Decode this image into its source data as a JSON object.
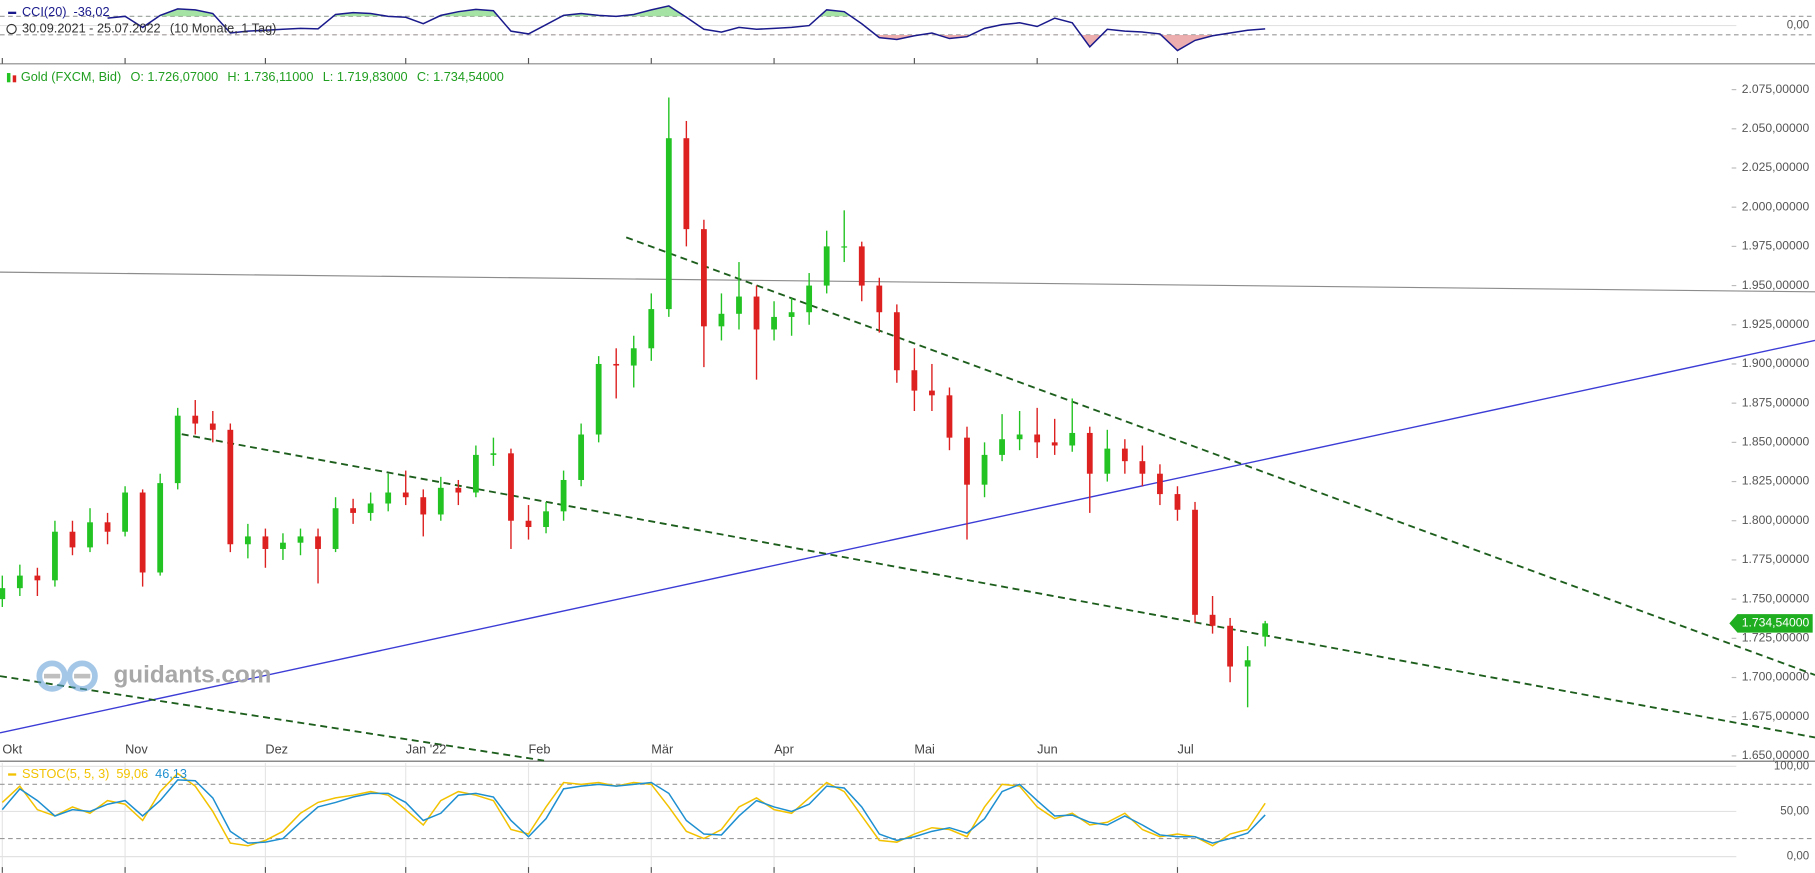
{
  "watermark": "guidants.com",
  "chart_data": [
    {
      "type": "line",
      "period": "30.09.2021 - 25.07.2022",
      "span": "(10 Monate, 1 Tag)",
      "ylim": [
        -375,
        250
      ],
      "yticks": [
        {
          "value": 0,
          "label": "0,00"
        }
      ],
      "levels": [
        100,
        -100
      ],
      "series": [
        {
          "name": "CCI(20)",
          "color": "#1a1a8c",
          "last_label": "-36,02",
          "values": [
            null,
            null,
            null,
            null,
            null,
            null,
            80,
            100,
            -20,
            110,
            180,
            170,
            130,
            -80,
            -60,
            -50,
            -40,
            -30,
            -35,
            120,
            140,
            130,
            100,
            90,
            20,
            110,
            150,
            175,
            160,
            -60,
            -90,
            10,
            110,
            130,
            110,
            100,
            120,
            170,
            212,
            90,
            -40,
            -70,
            -20,
            -40,
            -30,
            -20,
            0,
            170,
            150,
            20,
            -130,
            -150,
            -110,
            -80,
            -140,
            -120,
            -30,
            10,
            30,
            -10,
            80,
            30,
            -230,
            -40,
            -60,
            -70,
            -90,
            -270,
            -160,
            -110,
            -80,
            -50,
            -36.02
          ]
        }
      ]
    },
    {
      "type": "candlestick",
      "title": "Gold (FXCM, Bid)",
      "ohlc_labels": [
        "O: 1.726,07000",
        "H: 1.736,11000",
        "L: 1.719,83000",
        "C: 1.734,54000"
      ],
      "last_close_label": "1.734,54000",
      "up_color": "#22c322",
      "down_color": "#dd2020",
      "ylim": [
        1647,
        2090
      ],
      "yticks": [
        {
          "value": 1650,
          "label": "1.650,00000"
        },
        {
          "value": 1675,
          "label": "1.675,00000"
        },
        {
          "value": 1700,
          "label": "1.700,00000"
        },
        {
          "value": 1725,
          "label": "1.725,00000"
        },
        {
          "value": 1750,
          "label": "1.750,00000"
        },
        {
          "value": 1775,
          "label": "1.775,00000"
        },
        {
          "value": 1800,
          "label": "1.800,00000"
        },
        {
          "value": 1825,
          "label": "1.825,00000"
        },
        {
          "value": 1850,
          "label": "1.850,00000"
        },
        {
          "value": 1875,
          "label": "1.875,00000"
        },
        {
          "value": 1900,
          "label": "1.900,00000"
        },
        {
          "value": 1925,
          "label": "1.925,00000"
        },
        {
          "value": 1950,
          "label": "1.950,00000"
        },
        {
          "value": 1975,
          "label": "1.975,00000"
        },
        {
          "value": 2000,
          "label": "2.000,00000"
        },
        {
          "value": 2025,
          "label": "2.025,00000"
        },
        {
          "value": 2050,
          "label": "2.050,00000"
        },
        {
          "value": 2075,
          "label": "2.075,00000"
        }
      ],
      "categories": [
        "Okt",
        null,
        null,
        null,
        null,
        null,
        null,
        "Nov",
        null,
        null,
        null,
        null,
        null,
        null,
        null,
        "Dez",
        null,
        null,
        null,
        null,
        null,
        null,
        null,
        "Jan '22",
        null,
        null,
        null,
        null,
        null,
        null,
        "Feb",
        null,
        null,
        null,
        null,
        null,
        null,
        "Mär",
        null,
        null,
        null,
        null,
        null,
        null,
        "Apr",
        null,
        null,
        null,
        null,
        null,
        null,
        null,
        "Mai",
        null,
        null,
        null,
        null,
        null,
        null,
        "Jun",
        null,
        null,
        null,
        null,
        null,
        null,
        null,
        "Jul",
        null,
        null,
        null,
        null,
        null
      ],
      "open": [
        1750,
        1757,
        1765,
        1762,
        1793,
        1783,
        1799,
        1793,
        1818,
        1767,
        1824,
        1867,
        1862,
        1858,
        1785,
        1790,
        1782,
        1786,
        1790,
        1782,
        1808,
        1805,
        1811,
        1818,
        1815,
        1804,
        1821,
        1818,
        1842,
        1843,
        1800,
        1796,
        1806,
        1826,
        1855,
        1900,
        1899,
        1910,
        1935,
        2044,
        1986,
        1924,
        1932,
        1943,
        1922,
        1930,
        1933,
        1950,
        1975,
        1975,
        1950,
        1933,
        1896,
        1883,
        1880,
        1853,
        1823,
        1842,
        1852,
        1855,
        1850,
        1848,
        1856,
        1830,
        1846,
        1838,
        1830,
        1817,
        1807,
        1740,
        1733,
        1707,
        1726.07
      ],
      "high": [
        1765,
        1772,
        1770,
        1800,
        1800,
        1808,
        1805,
        1822,
        1820,
        1830,
        1872,
        1877,
        1870,
        1862,
        1798,
        1795,
        1792,
        1795,
        1795,
        1815,
        1814,
        1818,
        1830,
        1832,
        1820,
        1828,
        1826,
        1848,
        1853,
        1846,
        1810,
        1812,
        1832,
        1862,
        1905,
        1910,
        1918,
        1945,
        2070,
        2055,
        1992,
        1945,
        1965,
        1950,
        1940,
        1942,
        1958,
        1985,
        1998,
        1978,
        1955,
        1938,
        1910,
        1900,
        1885,
        1860,
        1850,
        1868,
        1870,
        1872,
        1865,
        1878,
        1860,
        1858,
        1852,
        1848,
        1836,
        1822,
        1812,
        1752,
        1738,
        1720,
        1736.11
      ],
      "low": [
        1745,
        1752,
        1752,
        1758,
        1778,
        1780,
        1785,
        1790,
        1758,
        1765,
        1820,
        1855,
        1850,
        1780,
        1776,
        1770,
        1775,
        1778,
        1760,
        1780,
        1798,
        1800,
        1806,
        1810,
        1790,
        1800,
        1810,
        1815,
        1835,
        1782,
        1788,
        1792,
        1800,
        1822,
        1850,
        1878,
        1885,
        1902,
        1930,
        1975,
        1898,
        1915,
        1922,
        1890,
        1915,
        1918,
        1925,
        1945,
        1965,
        1940,
        1920,
        1888,
        1870,
        1870,
        1845,
        1788,
        1815,
        1838,
        1845,
        1840,
        1842,
        1844,
        1805,
        1825,
        1830,
        1822,
        1810,
        1800,
        1735,
        1728,
        1697,
        1681,
        1719.83
      ],
      "close": [
        1757,
        1765,
        1762,
        1793,
        1783,
        1799,
        1793,
        1818,
        1767,
        1824,
        1867,
        1862,
        1858,
        1785,
        1790,
        1782,
        1786,
        1790,
        1782,
        1808,
        1805,
        1811,
        1818,
        1815,
        1804,
        1821,
        1818,
        1842,
        1843,
        1800,
        1796,
        1806,
        1826,
        1855,
        1900,
        1899,
        1910,
        1935,
        2044,
        1986,
        1924,
        1932,
        1943,
        1922,
        1930,
        1933,
        1950,
        1975,
        1975,
        1950,
        1933,
        1896,
        1883,
        1880,
        1853,
        1823,
        1842,
        1852,
        1855,
        1850,
        1848,
        1856,
        1830,
        1846,
        1838,
        1830,
        1817,
        1807,
        1740,
        1733,
        1707,
        1711,
        1734.54
      ]
    },
    {
      "type": "line",
      "title": "SSTOC(5, 5, 3)",
      "ylim": [
        -18,
        105
      ],
      "yticks": [
        {
          "value": 0,
          "label": "0,00"
        },
        {
          "value": 50,
          "label": "50,00"
        },
        {
          "value": 100,
          "label": "100,00"
        }
      ],
      "levels": [
        80,
        20
      ],
      "series": [
        {
          "color": "#f2c200",
          "last_label": "59,06",
          "values": [
            60,
            78,
            52,
            45,
            55,
            48,
            62,
            58,
            40,
            72,
            92,
            78,
            50,
            15,
            12,
            18,
            28,
            48,
            60,
            65,
            68,
            72,
            68,
            52,
            35,
            62,
            72,
            68,
            62,
            30,
            25,
            55,
            82,
            80,
            82,
            78,
            82,
            80,
            55,
            28,
            20,
            30,
            55,
            65,
            52,
            48,
            65,
            82,
            72,
            45,
            18,
            16,
            25,
            32,
            30,
            22,
            55,
            80,
            78,
            55,
            42,
            48,
            35,
            38,
            48,
            30,
            22,
            25,
            22,
            12,
            25,
            30,
            59.06
          ]
        },
        {
          "color": "#1e8fd0",
          "last_label": "46,13",
          "values": [
            52,
            75,
            62,
            45,
            52,
            50,
            58,
            62,
            45,
            62,
            85,
            84,
            65,
            28,
            15,
            16,
            20,
            38,
            55,
            60,
            66,
            70,
            70,
            60,
            40,
            48,
            68,
            70,
            66,
            40,
            22,
            42,
            75,
            78,
            80,
            78,
            80,
            82,
            70,
            40,
            25,
            24,
            45,
            62,
            55,
            50,
            58,
            78,
            76,
            55,
            25,
            18,
            22,
            28,
            32,
            26,
            42,
            72,
            80,
            62,
            45,
            46,
            38,
            35,
            45,
            35,
            24,
            22,
            22,
            15,
            20,
            26,
            46.13
          ]
        }
      ]
    }
  ]
}
